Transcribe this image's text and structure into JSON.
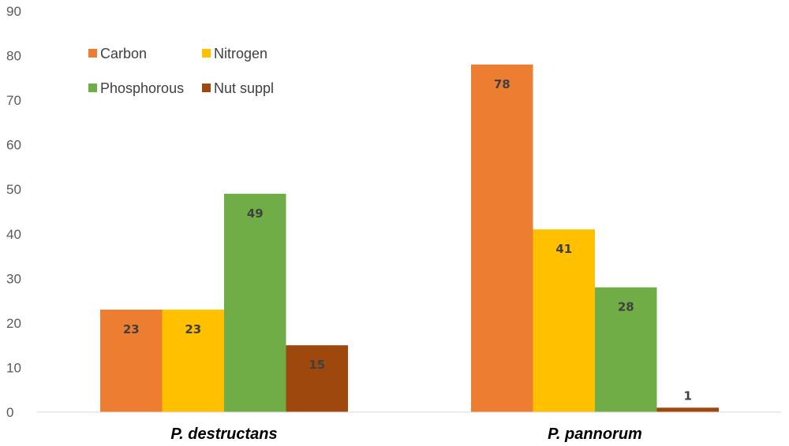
{
  "chart_data": {
    "type": "bar",
    "title": "",
    "xlabel": "",
    "ylabel": "",
    "categories": [
      "P. destructans",
      "P. pannorum"
    ],
    "series": [
      {
        "name": "Carbon",
        "color": "#ED7D31",
        "values": [
          23,
          78
        ]
      },
      {
        "name": "Nitrogen",
        "color": "#FFC000",
        "values": [
          23,
          41
        ]
      },
      {
        "name": "Phosphorous",
        "color": "#70AD47",
        "values": [
          49,
          28
        ]
      },
      {
        "name": "Nut suppl",
        "color": "#9E480E",
        "values": [
          15,
          1
        ]
      }
    ],
    "ylim": [
      0,
      90
    ],
    "yticks": [
      0,
      10,
      20,
      30,
      40,
      50,
      60,
      70,
      80,
      90
    ],
    "grid": false,
    "legend_position": "top-left",
    "data_labels": true
  }
}
